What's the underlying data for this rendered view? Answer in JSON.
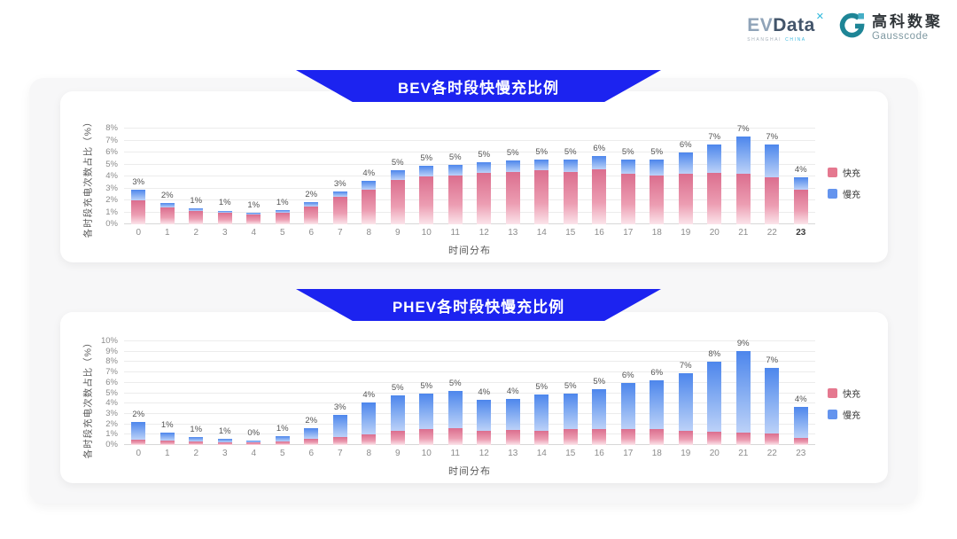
{
  "header": {
    "evdata": {
      "ev": "EV",
      "data": "Data",
      "mark": "✕",
      "sub_left": "SHANGHAI",
      "sub_right": "CHINA"
    },
    "gausscode": {
      "cn": "高科数聚",
      "en": "Gausscode"
    }
  },
  "colors": {
    "banner_blue": "#1C23F0",
    "fast_pink": "#E5788F",
    "slow_blue": "#6494EE",
    "panel_bg": "#f7f7f8",
    "card_bg": "#ffffff"
  },
  "chart_data": [
    {
      "type": "bar",
      "stacked": true,
      "title": "BEV各时段快慢充比例",
      "xlabel": "时间分布",
      "ylabel": "各时段充电次数占比（%）",
      "ymax": 8,
      "ylim": [
        0,
        8
      ],
      "yticks": [
        "0%",
        "1%",
        "2%",
        "3%",
        "4%",
        "5%",
        "6%",
        "7%",
        "8%"
      ],
      "categories": [
        "0",
        "1",
        "2",
        "3",
        "4",
        "5",
        "6",
        "7",
        "8",
        "9",
        "10",
        "11",
        "12",
        "13",
        "14",
        "15",
        "16",
        "17",
        "18",
        "19",
        "20",
        "21",
        "22",
        "23"
      ],
      "total_labels": [
        "3%",
        "2%",
        "1%",
        "1%",
        "1%",
        "1%",
        "2%",
        "3%",
        "4%",
        "5%",
        "5%",
        "5%",
        "5%",
        "5%",
        "5%",
        "5%",
        "6%",
        "5%",
        "5%",
        "6%",
        "7%",
        "7%",
        "7%",
        "4%"
      ],
      "series": [
        {
          "name": "快充",
          "color": "#E5788F",
          "values": [
            2.0,
            1.4,
            1.1,
            0.95,
            0.85,
            1.0,
            1.5,
            2.3,
            2.9,
            3.7,
            4.0,
            4.1,
            4.3,
            4.4,
            4.5,
            4.4,
            4.6,
            4.2,
            4.1,
            4.2,
            4.3,
            4.2,
            3.9,
            2.9
          ]
        },
        {
          "name": "慢充",
          "color": "#6494EE",
          "values": [
            0.9,
            0.4,
            0.25,
            0.2,
            0.1,
            0.2,
            0.35,
            0.45,
            0.7,
            0.85,
            0.9,
            0.9,
            0.9,
            0.95,
            0.9,
            1.0,
            1.1,
            1.2,
            1.3,
            1.8,
            2.4,
            3.1,
            2.8,
            1.0
          ]
        }
      ],
      "legend_position": "right",
      "grid": true,
      "bold_last_xlabel": true
    },
    {
      "type": "bar",
      "stacked": true,
      "title": "PHEV各时段快慢充比例",
      "xlabel": "时间分布",
      "ylabel": "各时段充电次数占比（%）",
      "ymax": 10,
      "ylim": [
        0,
        10
      ],
      "yticks": [
        "0%",
        "1%",
        "2%",
        "3%",
        "4%",
        "5%",
        "6%",
        "7%",
        "8%",
        "9%",
        "10%"
      ],
      "categories": [
        "0",
        "1",
        "2",
        "3",
        "4",
        "5",
        "6",
        "7",
        "8",
        "9",
        "10",
        "11",
        "12",
        "13",
        "14",
        "15",
        "16",
        "17",
        "18",
        "19",
        "20",
        "21",
        "22",
        "23"
      ],
      "total_labels": [
        "2%",
        "1%",
        "1%",
        "1%",
        "0%",
        "1%",
        "2%",
        "3%",
        "4%",
        "5%",
        "5%",
        "5%",
        "4%",
        "4%",
        "5%",
        "5%",
        "5%",
        "6%",
        "6%",
        "7%",
        "8%",
        "9%",
        "7%",
        "4%"
      ],
      "series": [
        {
          "name": "快充",
          "color": "#E5788F",
          "values": [
            0.5,
            0.4,
            0.35,
            0.3,
            0.25,
            0.35,
            0.6,
            0.8,
            1.0,
            1.4,
            1.5,
            1.6,
            1.4,
            1.45,
            1.4,
            1.5,
            1.5,
            1.5,
            1.5,
            1.4,
            1.3,
            1.2,
            1.1,
            0.7
          ]
        },
        {
          "name": "慢充",
          "color": "#6494EE",
          "values": [
            1.7,
            0.8,
            0.45,
            0.3,
            0.2,
            0.5,
            1.0,
            2.1,
            3.1,
            3.4,
            3.5,
            3.6,
            2.95,
            3.0,
            3.5,
            3.5,
            3.9,
            4.5,
            4.7,
            5.5,
            6.7,
            7.9,
            6.3,
            3.0
          ]
        }
      ],
      "legend_position": "right",
      "grid": true,
      "bold_last_xlabel": false
    }
  ]
}
